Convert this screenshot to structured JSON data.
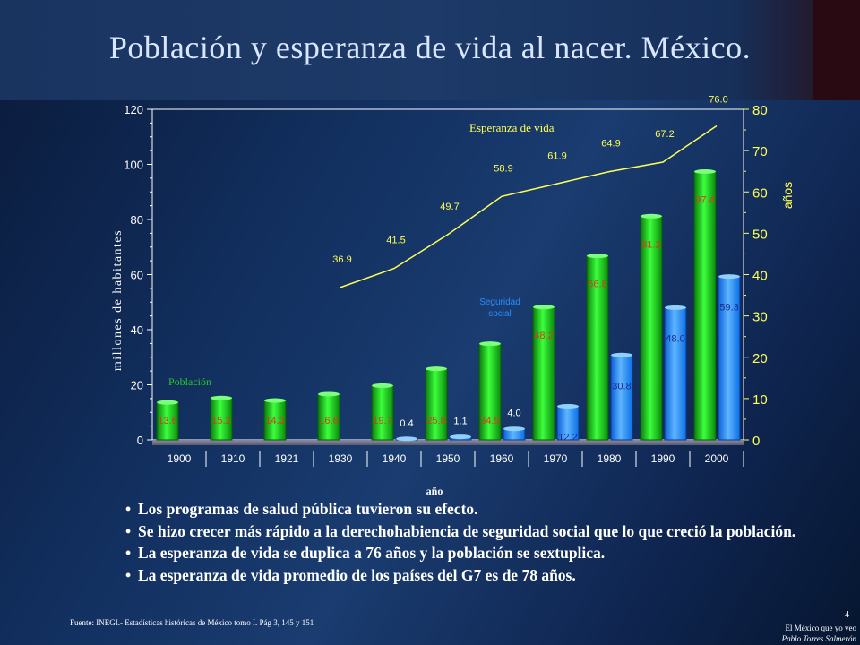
{
  "title": "Población y esperanza de vida al nacer. México.",
  "chart_data": {
    "type": "bar",
    "categories": [
      "1900",
      "1910",
      "1921",
      "1930",
      "1940",
      "1950",
      "1960",
      "1970",
      "1980",
      "1990",
      "2000"
    ],
    "series": [
      {
        "name": "Población",
        "kind": "bar",
        "axis": "left",
        "color": "#22cc22",
        "values": [
          13.6,
          15.2,
          14.3,
          16.6,
          19.7,
          25.8,
          34.9,
          48.2,
          66.8,
          81.2,
          97.4
        ],
        "labels": [
          "13.6",
          "15.2",
          "14.3",
          "16.6",
          "19.7",
          "25.8",
          "34.9",
          "48.2",
          "66.8",
          "81.2",
          "97.4"
        ]
      },
      {
        "name": "Seguridad social",
        "kind": "bar",
        "axis": "left",
        "color": "#2a8cff",
        "values": [
          null,
          null,
          null,
          null,
          0.4,
          1.1,
          4.0,
          12.2,
          30.8,
          48.0,
          59.3
        ],
        "labels": [
          null,
          null,
          null,
          null,
          "0.4",
          "1.1",
          "4.0",
          "12.2",
          "30.8",
          "48.0",
          "59.3"
        ]
      },
      {
        "name": "Esperanza de vida",
        "kind": "line",
        "axis": "right",
        "color": "#ffff55",
        "values": [
          null,
          null,
          null,
          36.9,
          41.5,
          49.7,
          58.9,
          61.9,
          64.9,
          67.2,
          76.0
        ],
        "labels": [
          null,
          null,
          null,
          "36.9",
          "41.5",
          "49.7",
          "58.9",
          "61.9",
          "64.9",
          "67.2",
          "76.0"
        ]
      }
    ],
    "ylabel": "millones de habitantes",
    "y2label": "años",
    "xlabel": "año",
    "ylim": [
      0,
      120
    ],
    "y2lim": [
      0,
      80
    ],
    "yticks": [
      0,
      20,
      40,
      60,
      80,
      100,
      120
    ],
    "y2ticks": [
      0,
      10,
      20,
      30,
      40,
      50,
      60,
      70,
      80
    ],
    "series_labels": {
      "poblacion": "Población",
      "seguridad": [
        "Seguridad",
        "social"
      ],
      "esperanza": "Esperanza de vida"
    }
  },
  "bullets": [
    "Los programas de salud pública tuvieron su efecto.",
    "Se hizo crecer más rápido a la derechohabiencia de seguridad social que lo que creció la población.",
    "La esperanza de vida se duplica a 76 años y la población se sextuplica.",
    "La esperanza de vida promedio de los países del G7 es de 78 años."
  ],
  "bullet_symbol": "•",
  "source": "Fuente: INEGI.- Estadísticas históricas de México tomo I. Pág 3, 145 y 151",
  "page_number": "4",
  "footer_line1": "El México que yo veo",
  "footer_line2": "Pablo Torres Salmerón"
}
